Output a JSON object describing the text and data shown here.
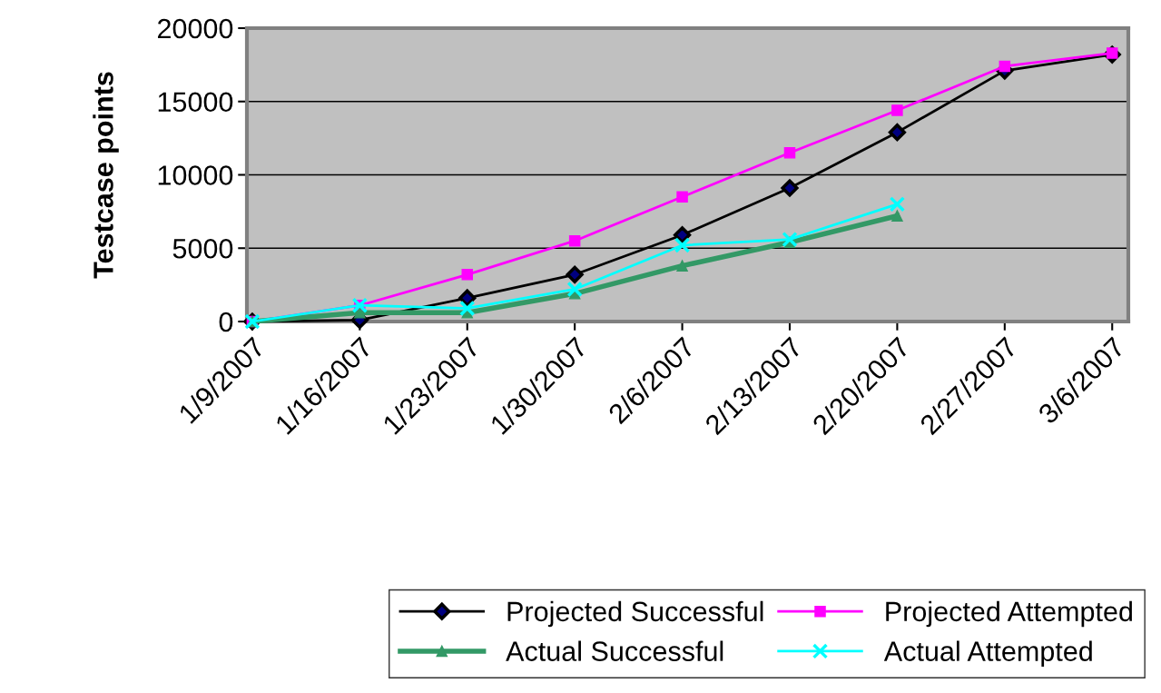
{
  "chart_data": {
    "type": "line",
    "ylabel": "Testcase points",
    "categories": [
      "1/9/2007",
      "1/16/2007",
      "1/23/2007",
      "1/30/2007",
      "2/6/2007",
      "2/13/2007",
      "2/20/2007",
      "2/27/2007",
      "3/6/2007"
    ],
    "series": [
      {
        "name": "Projected Successful",
        "color": "#000080",
        "marker": "diamond",
        "values": [
          0,
          100,
          1600,
          3200,
          5900,
          9100,
          12900,
          17100,
          18200
        ]
      },
      {
        "name": "Projected Attempted",
        "color": "#ff00ff",
        "marker": "square",
        "values": [
          0,
          1100,
          3200,
          5500,
          8500,
          11500,
          14400,
          17400,
          18300
        ]
      },
      {
        "name": "Actual Successful",
        "color": "#339966",
        "marker": "triangle",
        "values": [
          0,
          600,
          600,
          1900,
          3800,
          5400,
          7200,
          null,
          null
        ]
      },
      {
        "name": "Actual Attempted",
        "color": "#00ffff",
        "marker": "cross",
        "values": [
          0,
          1100,
          900,
          2200,
          5200,
          5600,
          8000,
          null,
          null
        ]
      }
    ],
    "ylim": [
      0,
      20000
    ],
    "yticks": [
      0,
      5000,
      10000,
      15000,
      20000
    ],
    "grid": "y",
    "legend": "bottom"
  }
}
